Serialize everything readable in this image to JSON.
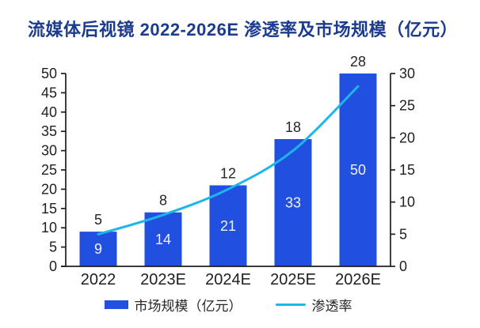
{
  "title": "流媒体后视镜 2022-2026E 渗透率及市场规模（亿元）",
  "chart_data": {
    "type": "combo-bar-line",
    "title": "流媒体后视镜 2022-2026E 渗透率及市场规模（亿元）",
    "categories": [
      "2022",
      "2023E",
      "2024E",
      "2025E",
      "2026E"
    ],
    "series": [
      {
        "name": "市场规模（亿元）",
        "type": "bar",
        "axis": "left",
        "values": [
          9,
          14,
          21,
          33,
          50
        ]
      },
      {
        "name": "渗透率",
        "type": "line",
        "axis": "right",
        "values": [
          5,
          8,
          12,
          18,
          28
        ]
      }
    ],
    "left_axis": {
      "min": 0,
      "max": 50,
      "step": 5
    },
    "right_axis": {
      "min": 0,
      "max": 30,
      "step": 5
    },
    "grid": false,
    "legend_position": "bottom",
    "bar_value_labels": "inside-white",
    "line_value_labels": "above-dark"
  },
  "colors": {
    "bar": "#2150e0",
    "line": "#1cb5ec",
    "title": "#1b3b8f",
    "axis": "#1f1f1f",
    "label_outside": "#262626",
    "label_inside": "#f2f2f2",
    "background": "#ffffff"
  }
}
